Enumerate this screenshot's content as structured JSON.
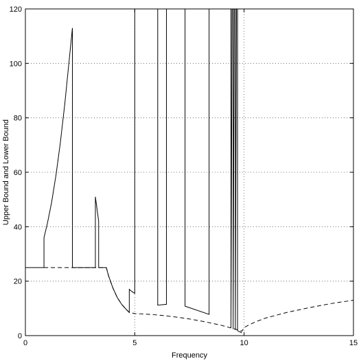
{
  "chart_data": {
    "type": "line",
    "title": "",
    "xlabel": "Frequency",
    "ylabel": "Upper Bound and Lower Bound",
    "xlim": [
      0,
      15
    ],
    "ylim": [
      0,
      120
    ],
    "xticks": [
      0,
      5,
      10,
      15
    ],
    "yticks": [
      0,
      20,
      40,
      60,
      80,
      100,
      120
    ],
    "grid": true,
    "series": [
      {
        "style": "solid",
        "points": [
          [
            0,
            25
          ],
          [
            0.85,
            25
          ],
          [
            0.85,
            36
          ],
          [
            1.0,
            41
          ],
          [
            1.2,
            49
          ],
          [
            1.4,
            59
          ],
          [
            1.6,
            71
          ],
          [
            1.8,
            85
          ],
          [
            2.0,
            101
          ],
          [
            2.15,
            113
          ],
          [
            2.15,
            25
          ],
          [
            3.2,
            25
          ],
          [
            3.2,
            51
          ],
          [
            3.3,
            45
          ],
          [
            3.35,
            42
          ],
          [
            3.35,
            25
          ],
          [
            3.7,
            25
          ],
          [
            3.8,
            22
          ],
          [
            4.0,
            17.5
          ],
          [
            4.2,
            14
          ],
          [
            4.4,
            11.5
          ],
          [
            4.6,
            9.7
          ],
          [
            4.75,
            8.5
          ],
          [
            4.75,
            17
          ],
          [
            4.85,
            16.3
          ],
          [
            5.0,
            15.5
          ],
          [
            5.0,
            120
          ],
          [
            6.05,
            120
          ],
          [
            6.05,
            11.2
          ],
          [
            6.45,
            11.5
          ],
          [
            6.45,
            120
          ],
          [
            7.3,
            120
          ],
          [
            7.3,
            10.8
          ],
          [
            8.4,
            7.8
          ],
          [
            8.4,
            120
          ],
          [
            9.4,
            120
          ],
          [
            9.4,
            2.8
          ],
          [
            9.45,
            120
          ],
          [
            9.5,
            120
          ],
          [
            9.5,
            2.4
          ],
          [
            9.55,
            120
          ],
          [
            9.6,
            120
          ],
          [
            9.6,
            2.1
          ],
          [
            9.65,
            120
          ],
          [
            9.7,
            120
          ],
          [
            9.7,
            1.8
          ],
          [
            9.75,
            1.6
          ],
          [
            9.9,
            1.0
          ]
        ]
      },
      {
        "style": "dashed",
        "points": [
          [
            0.85,
            25
          ],
          [
            3.2,
            25
          ],
          [
            3.7,
            25
          ],
          [
            3.8,
            22
          ],
          [
            4.0,
            17.5
          ],
          [
            4.2,
            14
          ],
          [
            4.4,
            11.5
          ],
          [
            4.6,
            9.7
          ],
          [
            4.75,
            8.5
          ],
          [
            5.0,
            8.1
          ],
          [
            5.5,
            7.9
          ],
          [
            6.0,
            7.6
          ],
          [
            6.5,
            7.2
          ],
          [
            7.0,
            6.7
          ],
          [
            7.5,
            6.1
          ],
          [
            8.0,
            5.4
          ],
          [
            8.5,
            4.6
          ],
          [
            9.0,
            3.7
          ],
          [
            9.5,
            2.6
          ],
          [
            9.9,
            1.6
          ],
          [
            10.0,
            3.0
          ],
          [
            10.5,
            5.0
          ],
          [
            11.0,
            6.5
          ],
          [
            12.0,
            8.6
          ],
          [
            13.0,
            10.3
          ],
          [
            14.0,
            11.8
          ],
          [
            15.0,
            13.0
          ]
        ]
      }
    ]
  }
}
